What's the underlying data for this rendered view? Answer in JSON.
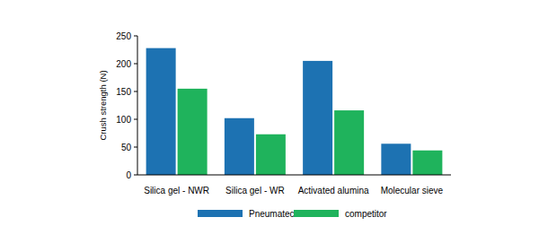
{
  "chart_data": {
    "type": "bar",
    "y_label": "Crush strength (N)",
    "categories": [
      "Silica gel - NWR",
      "Silica gel - WR",
      "Activated alumina",
      "Molecular sieve"
    ],
    "series": [
      {
        "name": "Pneumatech",
        "color": "#1d72b2",
        "values": [
          228,
          102,
          205,
          56
        ]
      },
      {
        "name": "competitor",
        "color": "#1fb35c",
        "values": [
          155,
          73,
          116,
          44
        ]
      }
    ],
    "ylim": [
      0,
      250
    ],
    "yticks": [
      0,
      50,
      100,
      150,
      200,
      250
    ],
    "grid": false,
    "legend": "bottom"
  }
}
